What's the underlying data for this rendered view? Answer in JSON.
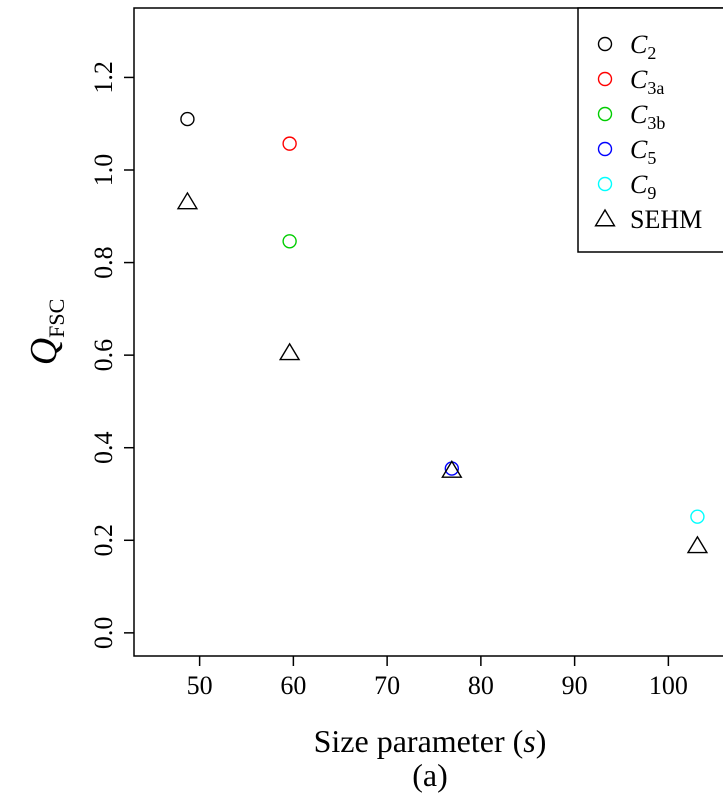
{
  "chart_data": {
    "type": "scatter",
    "xlabel": {
      "main": "Size parameter (",
      "var": "s",
      "close": ")"
    },
    "ylabel": {
      "main": "Q",
      "sub": "FSC"
    },
    "caption": "(a)",
    "xlim": [
      43,
      107
    ],
    "ylim": [
      -0.05,
      1.35
    ],
    "x_ticks": [
      50,
      60,
      70,
      80,
      90,
      100
    ],
    "y_ticks": [
      0.0,
      0.2,
      0.4,
      0.6,
      0.8,
      1.0,
      1.2
    ],
    "x_tick_labels": [
      "50",
      "60",
      "70",
      "80",
      "90",
      "100"
    ],
    "y_tick_labels": [
      "0.0",
      "0.2",
      "0.4",
      "0.6",
      "0.8",
      "1.0",
      "1.2"
    ],
    "legend_position": "top-right",
    "series": [
      {
        "name": "C_2",
        "label": {
          "main": "C",
          "sub": "2"
        },
        "marker": "circle",
        "color": "#000000",
        "points": [
          [
            48.7,
            1.11
          ]
        ]
      },
      {
        "name": "C_3a",
        "label": {
          "main": "C",
          "sub": "3a"
        },
        "marker": "circle",
        "color": "#ff0000",
        "points": [
          [
            59.6,
            1.057
          ]
        ]
      },
      {
        "name": "C_3b",
        "label": {
          "main": "C",
          "sub": "3b"
        },
        "marker": "circle",
        "color": "#00cd00",
        "points": [
          [
            59.6,
            0.846
          ]
        ]
      },
      {
        "name": "C_5",
        "label": {
          "main": "C",
          "sub": "5"
        },
        "marker": "circle",
        "color": "#0000ff",
        "points": [
          [
            76.9,
            0.355
          ]
        ]
      },
      {
        "name": "C_9",
        "label": {
          "main": "C",
          "sub": "9"
        },
        "marker": "circle",
        "color": "#00ffff",
        "points": [
          [
            103.1,
            0.251
          ]
        ]
      },
      {
        "name": "SEHM",
        "label": {
          "main": "SEHM",
          "sub": ""
        },
        "marker": "triangle",
        "color": "#000000",
        "points": [
          [
            48.7,
            0.931
          ],
          [
            59.6,
            0.605
          ],
          [
            76.9,
            0.351
          ],
          [
            103.1,
            0.188
          ]
        ]
      }
    ]
  }
}
